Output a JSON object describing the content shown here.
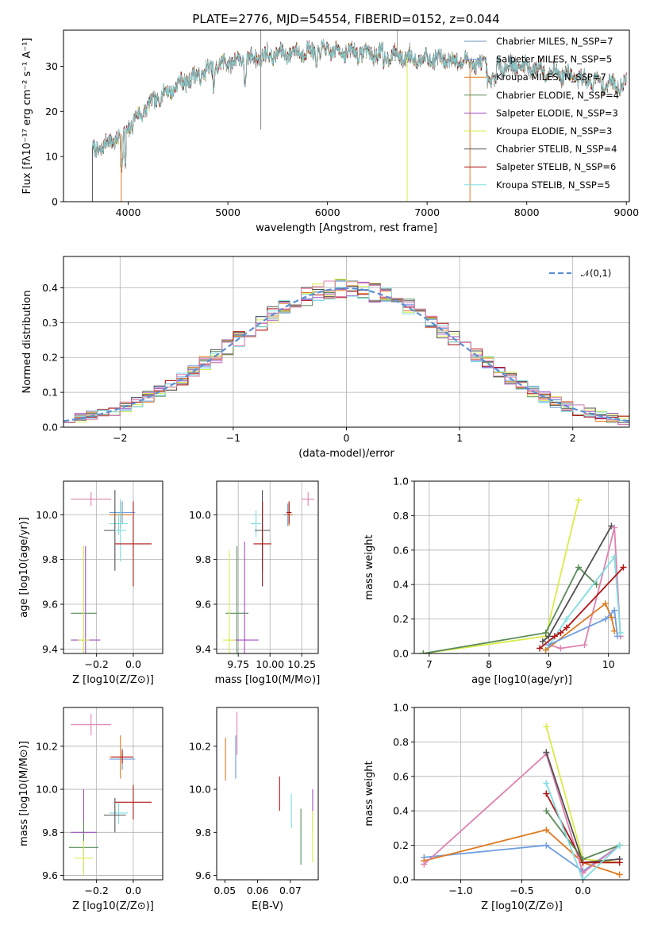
{
  "figure_title": "PLATE=2776, MJD=54554, FIBERID=0152, z=0.044",
  "colors": {
    "Chabrier MILES": "#6b8fbf",
    "Salpeter MILES": "#6e9ee0",
    "Kroupa MILES": "#e07a1f",
    "Chabrier ELODIE": "#5a8a5a",
    "Salpeter ELODIE": "#a24fc2",
    "Kroupa ELODIE": "#d9ec4a",
    "Chabrier STELIB": "#505050",
    "Salpeter STELIB": "#b01414",
    "Kroupa STELIB": "#7fdde0",
    "pink": "#e080b0",
    "normal_curve": "#5b8fd4"
  },
  "chart_data": [
    {
      "id": "spectrum",
      "type": "line",
      "xlabel": "wavelength [Angstrom, rest frame]",
      "ylabel": "Flux [fλ10⁻¹⁷ erg cm⁻² s⁻¹ A⁻¹]",
      "xlim": [
        3350,
        9030
      ],
      "ylim": [
        0,
        38
      ],
      "xticks": [
        4000,
        5000,
        6000,
        7000,
        8000,
        9000
      ],
      "yticks": [
        0,
        10,
        20,
        30
      ],
      "legend_position": "right",
      "legend": [
        {
          "label": "Chabrier MILES, N_SSP=7",
          "color": "#6b8fbf"
        },
        {
          "label": "Salpeter MILES, N_SSP=5",
          "color": "#6e9ee0"
        },
        {
          "label": "Kroupa MILES, N_SSP=7",
          "color": "#e07a1f"
        },
        {
          "label": "Chabrier ELODIE, N_SSP=4",
          "color": "#5a8a5a"
        },
        {
          "label": "Salpeter ELODIE, N_SSP=3",
          "color": "#a24fc2"
        },
        {
          "label": "Kroupa ELODIE, N_SSP=3",
          "color": "#d9ec4a"
        },
        {
          "label": "Chabrier STELIB, N_SSP=4",
          "color": "#505050"
        },
        {
          "label": "Salpeter STELIB, N_SSP=6",
          "color": "#b01414"
        },
        {
          "label": "Kroupa STELIB, N_SSP=5",
          "color": "#7fdde0"
        }
      ],
      "continuum_nodes": [
        [
          3640,
          11
        ],
        [
          3800,
          13
        ],
        [
          3950,
          15
        ],
        [
          4100,
          19
        ],
        [
          4300,
          23
        ],
        [
          4500,
          26
        ],
        [
          4800,
          29
        ],
        [
          5000,
          31
        ],
        [
          5300,
          32
        ],
        [
          5600,
          33
        ],
        [
          6000,
          33.5
        ],
        [
          6400,
          33
        ],
        [
          6800,
          32
        ],
        [
          7200,
          31.5
        ],
        [
          7400,
          31
        ],
        [
          7600,
          30
        ],
        [
          8000,
          30
        ],
        [
          8400,
          28
        ],
        [
          8800,
          26
        ],
        [
          9000,
          26
        ]
      ]
    },
    {
      "id": "residuals",
      "type": "line",
      "xlabel": "(data-model)/error",
      "ylabel": "Normed distribution",
      "xlim": [
        -2.5,
        2.5
      ],
      "ylim": [
        0,
        0.49
      ],
      "xticks": [
        -2,
        -1,
        0,
        1,
        2
      ],
      "yticks": [
        0.0,
        0.1,
        0.2,
        0.3,
        0.4
      ],
      "grid": true,
      "legend_position": "top-right",
      "normal_label": "𝒩(0,1)"
    },
    {
      "id": "age_vs_Z",
      "type": "scatter",
      "xlabel": "Z [log10(Z/Z⊙)]",
      "ylabel": "age  [log10(age/yr)]",
      "xlim": [
        -0.38,
        0.16
      ],
      "ylim": [
        9.38,
        10.15
      ],
      "xticks": [
        -0.2,
        0.0
      ],
      "yticks": [
        9.4,
        9.6,
        9.8,
        10.0
      ],
      "grid": true,
      "points": [
        {
          "x": -0.23,
          "y": 10.07,
          "xerr": 0.11,
          "yerr": 0.03,
          "color": "#e080b0"
        },
        {
          "x": -0.06,
          "y": 10.01,
          "xerr": 0.07,
          "yerr": 0.05,
          "color": "#6e9ee0"
        },
        {
          "x": -0.07,
          "y": 10.0,
          "xerr": 0.06,
          "yerr": 0.06,
          "color": "#e07a1f"
        },
        {
          "x": -0.08,
          "y": 9.96,
          "xerr": 0.05,
          "yerr": 0.05,
          "color": "#7fdde0"
        },
        {
          "x": -0.1,
          "y": 9.93,
          "xerr": 0.06,
          "yerr": 0.18,
          "color": "#505050"
        },
        {
          "x": -0.07,
          "y": 9.93,
          "xerr": 0.03,
          "yerr": 0.14,
          "color": "#7fdde0"
        },
        {
          "x": 0.0,
          "y": 9.87,
          "xerr": 0.1,
          "yerr": 0.19,
          "color": "#b01414"
        },
        {
          "x": -0.27,
          "y": 9.56,
          "xerr": 0.07,
          "yerr": 0.3,
          "color": "#5a8a5a"
        },
        {
          "x": -0.26,
          "y": 9.44,
          "xerr": 0.08,
          "yerr": 0.42,
          "color": "#a24fc2"
        },
        {
          "x": -0.27,
          "y": 9.44,
          "xerr": 0.03,
          "yerr": 0.42,
          "color": "#d9ec4a"
        }
      ]
    },
    {
      "id": "age_vs_mass",
      "type": "scatter",
      "xlabel": "mass [log10(M/M⊙)]",
      "ylabel": "",
      "xlim": [
        9.58,
        10.38
      ],
      "ylim": [
        9.38,
        10.15
      ],
      "xticks": [
        9.75,
        10.0,
        10.25
      ],
      "yticks": [
        9.4,
        9.6,
        9.8,
        10.0
      ],
      "grid": true,
      "points": [
        {
          "x": 10.3,
          "y": 10.07,
          "xerr": 0.05,
          "yerr": 0.03,
          "color": "#e080b0"
        },
        {
          "x": 10.14,
          "y": 10.0,
          "xerr": 0.04,
          "yerr": 0.05,
          "color": "#6e9ee0"
        },
        {
          "x": 10.15,
          "y": 10.0,
          "xerr": 0.03,
          "yerr": 0.05,
          "color": "#e07a1f"
        },
        {
          "x": 10.15,
          "y": 10.01,
          "xerr": 0.02,
          "yerr": 0.05,
          "color": "#b01414"
        },
        {
          "x": 9.89,
          "y": 9.96,
          "xerr": 0.04,
          "yerr": 0.06,
          "color": "#7fdde0"
        },
        {
          "x": 9.94,
          "y": 9.93,
          "xerr": 0.06,
          "yerr": 0.18,
          "color": "#505050"
        },
        {
          "x": 9.94,
          "y": 9.87,
          "xerr": 0.07,
          "yerr": 0.19,
          "color": "#b01414"
        },
        {
          "x": 9.74,
          "y": 9.56,
          "xerr": 0.09,
          "yerr": 0.3,
          "color": "#5a8a5a"
        },
        {
          "x": 9.8,
          "y": 9.44,
          "xerr": 0.11,
          "yerr": 0.44,
          "color": "#a24fc2"
        },
        {
          "x": 9.68,
          "y": 9.44,
          "xerr": 0.05,
          "yerr": 0.4,
          "color": "#d9ec4a"
        }
      ]
    },
    {
      "id": "massweight_vs_age",
      "type": "line",
      "xlabel": "age  [log10(age/yr)]",
      "ylabel": "mass weight",
      "xlim": [
        6.75,
        10.35
      ],
      "ylim": [
        0,
        1.0
      ],
      "xticks": [
        7,
        8,
        9,
        10
      ],
      "yticks": [
        0.0,
        0.2,
        0.4,
        0.6,
        0.8,
        1.0
      ],
      "grid": true,
      "series": [
        {
          "color": "#d9ec4a",
          "x": [
            6.9,
            8.95,
            9.5
          ],
          "y": [
            0.0,
            0.1,
            0.89
          ]
        },
        {
          "color": "#5a8a5a",
          "x": [
            6.9,
            8.95,
            9.5,
            9.8
          ],
          "y": [
            0.0,
            0.12,
            0.5,
            0.4
          ]
        },
        {
          "color": "#505050",
          "x": [
            8.9,
            9.0,
            10.05
          ],
          "y": [
            0.07,
            0.1,
            0.74
          ]
        },
        {
          "color": "#e080b0",
          "x": [
            9.0,
            9.2,
            9.6,
            10.1,
            10.2
          ],
          "y": [
            0.05,
            0.03,
            0.05,
            0.73,
            0.1
          ]
        },
        {
          "color": "#7fdde0",
          "x": [
            8.95,
            9.3,
            10.1,
            10.2
          ],
          "y": [
            0.02,
            0.2,
            0.56,
            0.12
          ]
        },
        {
          "color": "#b01414",
          "x": [
            8.85,
            9.1,
            9.2,
            9.3,
            10.25
          ],
          "y": [
            0.03,
            0.1,
            0.12,
            0.15,
            0.5
          ]
        },
        {
          "color": "#e07a1f",
          "x": [
            8.95,
            9.95,
            10.05,
            10.1
          ],
          "y": [
            0.02,
            0.29,
            0.21,
            0.13
          ]
        },
        {
          "color": "#6e9ee0",
          "x": [
            9.0,
            9.95,
            10.1,
            10.15
          ],
          "y": [
            0.05,
            0.2,
            0.25,
            0.1
          ]
        }
      ]
    },
    {
      "id": "mass_vs_Z",
      "type": "scatter",
      "xlabel": "Z [log10(Z/Z⊙)]",
      "ylabel": "mass [log10(M/M⊙)]",
      "xlim": [
        -0.38,
        0.16
      ],
      "ylim": [
        9.58,
        10.38
      ],
      "xticks": [
        -0.2,
        0.0
      ],
      "yticks": [
        9.6,
        9.8,
        10.0,
        10.2
      ],
      "grid": true,
      "points": [
        {
          "x": -0.23,
          "y": 10.3,
          "xerr": 0.11,
          "yerr": 0.05,
          "color": "#e080b0"
        },
        {
          "x": -0.06,
          "y": 10.14,
          "xerr": 0.07,
          "yerr": 0.05,
          "color": "#6e9ee0"
        },
        {
          "x": -0.07,
          "y": 10.15,
          "xerr": 0.06,
          "yerr": 0.1,
          "color": "#e07a1f"
        },
        {
          "x": -0.06,
          "y": 10.15,
          "xerr": 0.06,
          "yerr": 0.03,
          "color": "#b01414"
        },
        {
          "x": -0.08,
          "y": 9.89,
          "xerr": 0.05,
          "yerr": 0.05,
          "color": "#7fdde0"
        },
        {
          "x": -0.1,
          "y": 9.88,
          "xerr": 0.06,
          "yerr": 0.08,
          "color": "#505050"
        },
        {
          "x": 0.0,
          "y": 9.94,
          "xerr": 0.1,
          "yerr": 0.08,
          "color": "#b01414"
        },
        {
          "x": -0.27,
          "y": 9.8,
          "xerr": 0.07,
          "yerr": 0.2,
          "color": "#a24fc2"
        },
        {
          "x": -0.27,
          "y": 9.73,
          "xerr": 0.08,
          "yerr": 0.12,
          "color": "#5a8a5a"
        },
        {
          "x": -0.27,
          "y": 9.68,
          "xerr": 0.05,
          "yerr": 0.08,
          "color": "#d9ec4a"
        }
      ]
    },
    {
      "id": "mass_vs_EBV",
      "type": "scatter",
      "xlabel": "E(B-V)",
      "ylabel": "",
      "xlim": [
        0.0475,
        0.0785
      ],
      "ylim": [
        9.58,
        10.38
      ],
      "xticks": [
        0.05,
        0.06,
        0.07
      ],
      "yticks": [
        9.6,
        9.8,
        10.0,
        10.2
      ],
      "grid": false,
      "points": [
        {
          "x": 0.0502,
          "y": 10.14,
          "yerr": 0.1,
          "color": "#e07a1f"
        },
        {
          "x": 0.0533,
          "y": 10.15,
          "yerr": 0.1,
          "color": "#6e9ee0"
        },
        {
          "x": 0.0537,
          "y": 10.26,
          "yerr": 0.1,
          "color": "#e080b0"
        },
        {
          "x": 0.0667,
          "y": 9.98,
          "yerr": 0.08,
          "color": "#b01414"
        },
        {
          "x": 0.0703,
          "y": 9.9,
          "yerr": 0.08,
          "color": "#7fdde0"
        },
        {
          "x": 0.0732,
          "y": 9.78,
          "yerr": 0.13,
          "color": "#5a8a5a"
        },
        {
          "x": 0.0768,
          "y": 9.9,
          "yerr": 0.1,
          "color": "#a24fc2"
        },
        {
          "x": 0.0768,
          "y": 9.78,
          "yerr": 0.12,
          "color": "#d9ec4a"
        }
      ]
    },
    {
      "id": "massweight_vs_Z",
      "type": "line",
      "xlabel": "Z [log10(Z/Z⊙)]",
      "ylabel": "mass weight",
      "xlim": [
        -1.38,
        0.38
      ],
      "ylim": [
        0,
        1.0
      ],
      "xticks": [
        -1.0,
        -0.5,
        0.0
      ],
      "yticks": [
        0.0,
        0.2,
        0.4,
        0.6,
        0.8,
        1.0
      ],
      "grid": true,
      "series": [
        {
          "color": "#6e9ee0",
          "x": [
            -1.3,
            -0.3,
            0.0,
            0.3
          ],
          "y": [
            0.13,
            0.2,
            0.05,
            0.2
          ]
        },
        {
          "color": "#e07a1f",
          "x": [
            -1.3,
            -0.3,
            0.0,
            0.3
          ],
          "y": [
            0.11,
            0.29,
            0.1,
            0.03
          ]
        },
        {
          "color": "#e080b0",
          "x": [
            -1.3,
            -0.3,
            0.0,
            0.3
          ],
          "y": [
            0.09,
            0.73,
            0.04,
            0.2
          ]
        },
        {
          "color": "#d9ec4a",
          "x": [
            -0.3,
            0.0,
            0.3
          ],
          "y": [
            0.89,
            0.12,
            0.1
          ]
        },
        {
          "color": "#505050",
          "x": [
            -0.3,
            0.0,
            0.3
          ],
          "y": [
            0.74,
            0.1,
            0.12
          ]
        },
        {
          "color": "#b01414",
          "x": [
            -0.3,
            0.0,
            0.3
          ],
          "y": [
            0.5,
            0.1,
            0.1
          ]
        },
        {
          "color": "#5a8a5a",
          "x": [
            -0.3,
            0.0,
            0.3
          ],
          "y": [
            0.4,
            0.12,
            0.2
          ]
        },
        {
          "color": "#7fdde0",
          "x": [
            -0.3,
            0.0,
            0.3
          ],
          "y": [
            0.56,
            0.0,
            0.2
          ]
        }
      ]
    }
  ]
}
